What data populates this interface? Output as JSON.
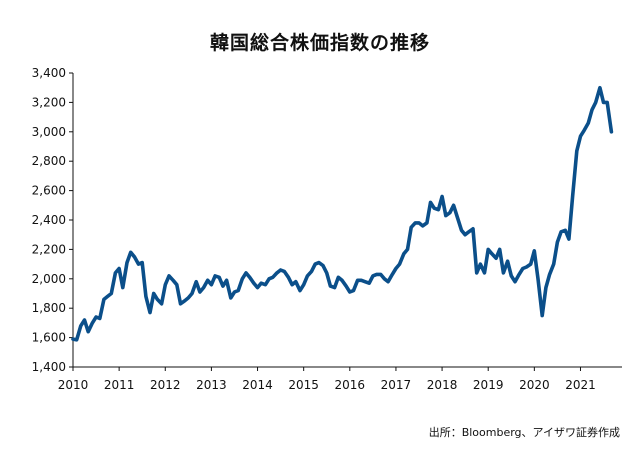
{
  "chart_data": {
    "type": "line",
    "title": "韓国総合株価指数の推移",
    "source": "出所：Bloomberg、アイザワ証券作成",
    "xlabel": "",
    "ylabel": "",
    "xlim": [
      2010,
      2021.9
    ],
    "ylim": [
      1400,
      3400
    ],
    "x_ticks": [
      2010,
      2011,
      2012,
      2013,
      2014,
      2015,
      2016,
      2017,
      2018,
      2019,
      2020,
      2021
    ],
    "x_tick_labels": [
      "2010",
      "2011",
      "2012",
      "2013",
      "2014",
      "2015",
      "2016",
      "2017",
      "2018",
      "2019",
      "2020",
      "2021"
    ],
    "y_ticks": [
      1400,
      1600,
      1800,
      2000,
      2200,
      2400,
      2600,
      2800,
      3000,
      3200,
      3400
    ],
    "y_tick_labels": [
      "1,400",
      "1,600",
      "1,800",
      "2,000",
      "2,200",
      "2,400",
      "2,600",
      "2,800",
      "3,000",
      "3,200",
      "3,400"
    ],
    "grid": false,
    "legend": "none",
    "colors": {
      "line": "#0b4f8a",
      "axis": "#111111"
    },
    "series": [
      {
        "x": [
          2010.0,
          2010.08,
          2010.17,
          2010.25,
          2010.33,
          2010.42,
          2010.5,
          2010.58,
          2010.67,
          2010.75,
          2010.83,
          2010.92,
          2011.0,
          2011.08,
          2011.17,
          2011.25,
          2011.33,
          2011.42,
          2011.5,
          2011.58,
          2011.67,
          2011.75,
          2011.83,
          2011.92,
          2012.0,
          2012.08,
          2012.17,
          2012.25,
          2012.33,
          2012.42,
          2012.5,
          2012.58,
          2012.67,
          2012.75,
          2012.83,
          2012.92,
          2013.0,
          2013.08,
          2013.17,
          2013.25,
          2013.33,
          2013.42,
          2013.5,
          2013.58,
          2013.67,
          2013.75,
          2013.83,
          2013.92,
          2014.0,
          2014.08,
          2014.17,
          2014.25,
          2014.33,
          2014.42,
          2014.5,
          2014.58,
          2014.67,
          2014.75,
          2014.83,
          2014.92,
          2015.0,
          2015.08,
          2015.17,
          2015.25,
          2015.33,
          2015.42,
          2015.5,
          2015.58,
          2015.67,
          2015.75,
          2015.83,
          2015.92,
          2016.0,
          2016.08,
          2016.17,
          2016.25,
          2016.33,
          2016.42,
          2016.5,
          2016.58,
          2016.67,
          2016.75,
          2016.83,
          2016.92,
          2017.0,
          2017.08,
          2017.17,
          2017.25,
          2017.33,
          2017.42,
          2017.5,
          2017.58,
          2017.67,
          2017.75,
          2017.83,
          2017.92,
          2018.0,
          2018.08,
          2018.17,
          2018.25,
          2018.33,
          2018.42,
          2018.5,
          2018.58,
          2018.67,
          2018.75,
          2018.83,
          2018.92,
          2019.0,
          2019.08,
          2019.17,
          2019.25,
          2019.33,
          2019.42,
          2019.5,
          2019.58,
          2019.67,
          2019.75,
          2019.83,
          2019.92,
          2020.0,
          2020.08,
          2020.17,
          2020.25,
          2020.33,
          2020.42,
          2020.5,
          2020.58,
          2020.67,
          2020.75,
          2020.83,
          2020.92,
          2021.0,
          2021.08,
          2021.17,
          2021.25,
          2021.33,
          2021.42,
          2021.5,
          2021.58,
          2021.67
        ],
        "values": [
          1590,
          1585,
          1680,
          1720,
          1640,
          1700,
          1740,
          1730,
          1860,
          1880,
          1900,
          2040,
          2070,
          1940,
          2110,
          2180,
          2150,
          2100,
          2110,
          1880,
          1770,
          1900,
          1860,
          1830,
          1960,
          2020,
          1990,
          1960,
          1830,
          1850,
          1870,
          1900,
          1980,
          1910,
          1940,
          1990,
          1960,
          2020,
          2010,
          1950,
          1990,
          1870,
          1910,
          1920,
          2000,
          2040,
          2010,
          1970,
          1940,
          1970,
          1960,
          2000,
          2010,
          2040,
          2060,
          2050,
          2010,
          1960,
          1980,
          1920,
          1960,
          2020,
          2050,
          2100,
          2110,
          2090,
          2040,
          1950,
          1940,
          2010,
          1990,
          1950,
          1910,
          1920,
          1990,
          1990,
          1980,
          1970,
          2020,
          2030,
          2030,
          2000,
          1980,
          2030,
          2070,
          2100,
          2170,
          2200,
          2350,
          2380,
          2380,
          2360,
          2380,
          2520,
          2480,
          2470,
          2560,
          2430,
          2450,
          2500,
          2420,
          2330,
          2300,
          2320,
          2340,
          2040,
          2100,
          2040,
          2200,
          2170,
          2140,
          2200,
          2040,
          2120,
          2020,
          1980,
          2030,
          2070,
          2080,
          2100,
          2190,
          2000,
          1750,
          1940,
          2030,
          2100,
          2250,
          2320,
          2330,
          2270,
          2560,
          2870,
          2970,
          3010,
          3060,
          3150,
          3200,
          3300,
          3200,
          3200,
          3000
        ]
      }
    ]
  }
}
